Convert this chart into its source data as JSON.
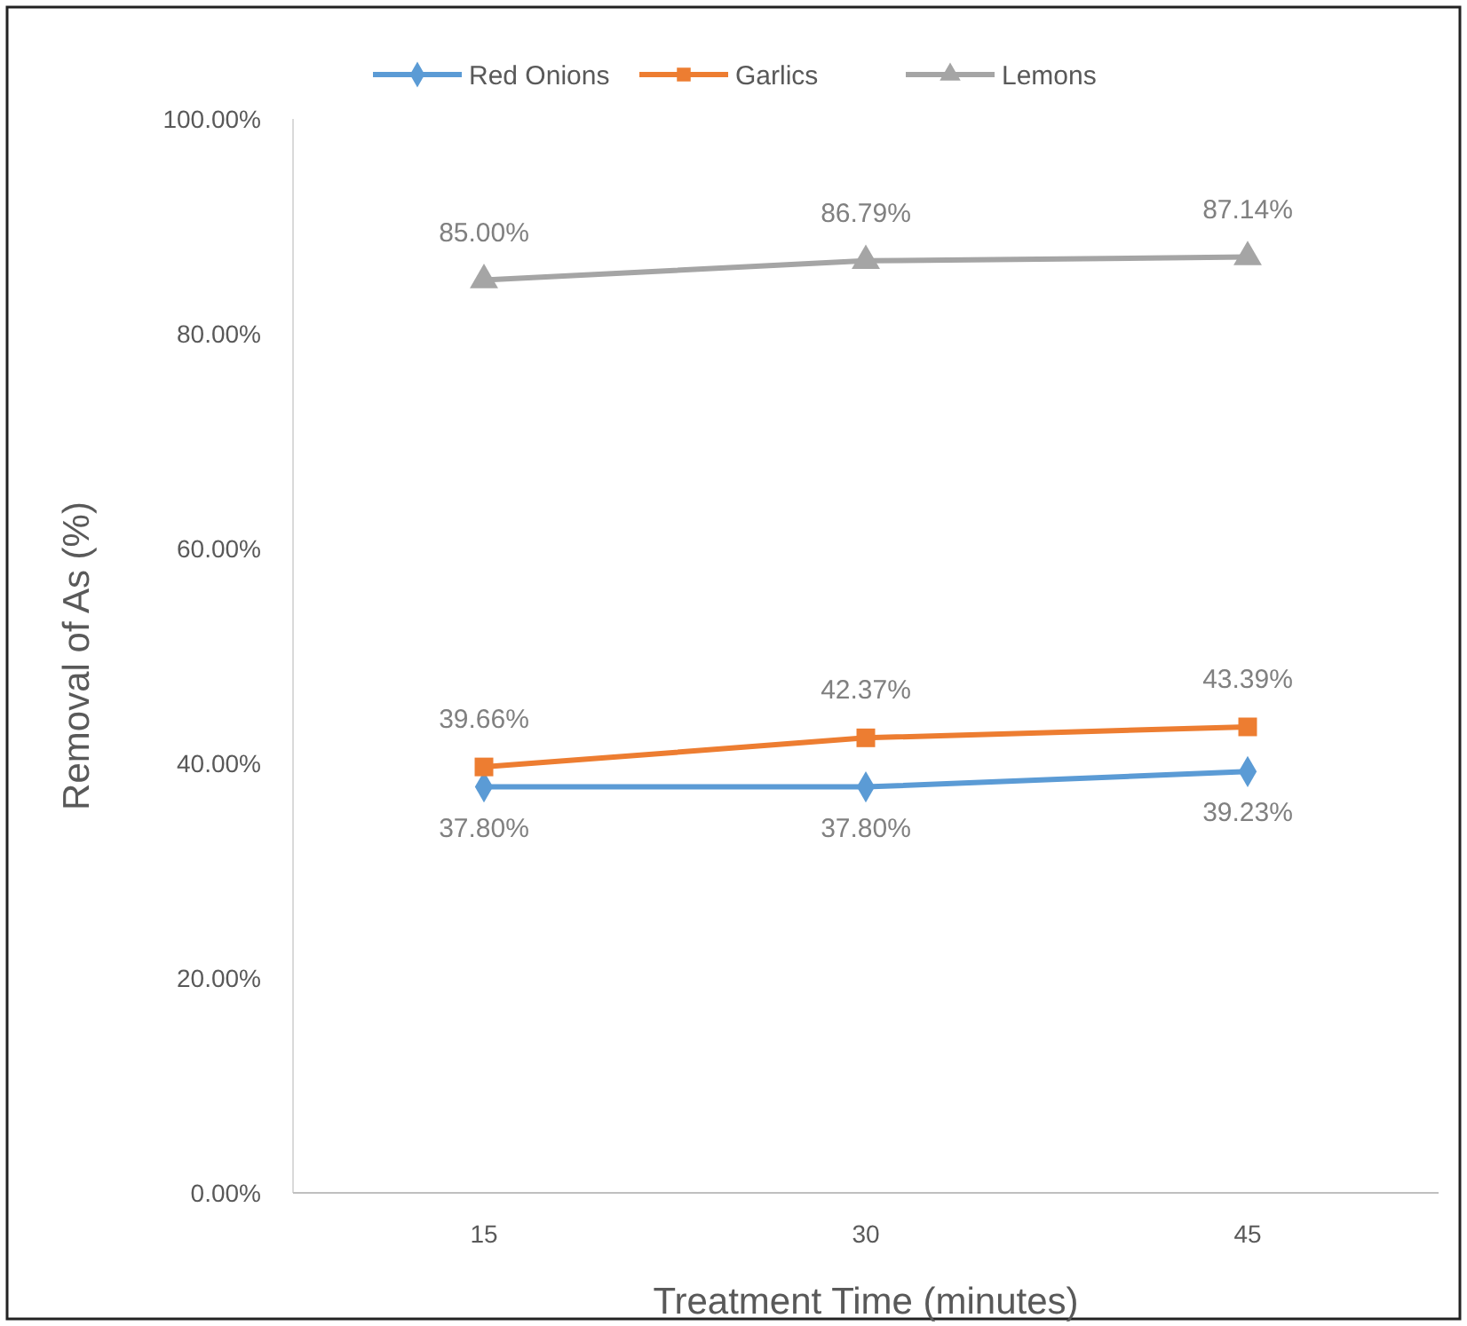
{
  "chart_data": {
    "type": "line",
    "xlabel": "Treatment Time (minutes)",
    "ylabel": "Removal of As  (%)",
    "categories": [
      "15",
      "30",
      "45"
    ],
    "ylim": [
      0,
      100
    ],
    "yticks": [
      {
        "value": 0,
        "label": "0.00%"
      },
      {
        "value": 20,
        "label": "20.00%"
      },
      {
        "value": 40,
        "label": "40.00%"
      },
      {
        "value": 60,
        "label": "60.00%"
      },
      {
        "value": 80,
        "label": "80.00%"
      },
      {
        "value": 100,
        "label": "100.00%"
      }
    ],
    "grid": false,
    "legend": "top",
    "series": [
      {
        "name": "Red Onions",
        "color": "#5b9bd5",
        "marker": "diamond",
        "values": [
          37.8,
          37.8,
          39.23
        ],
        "value_labels": [
          "37.80%",
          "37.80%",
          "39.23%"
        ]
      },
      {
        "name": "Garlics",
        "color": "#ed7d31",
        "marker": "square",
        "values": [
          39.66,
          42.37,
          43.39
        ],
        "value_labels": [
          "39.66%",
          "42.37%",
          "43.39%"
        ]
      },
      {
        "name": "Lemons",
        "color": "#a5a5a5",
        "marker": "triangle",
        "values": [
          85,
          86.79,
          87.14
        ],
        "value_labels": [
          "85.00%",
          "86.79%",
          "87.14%"
        ]
      }
    ]
  }
}
